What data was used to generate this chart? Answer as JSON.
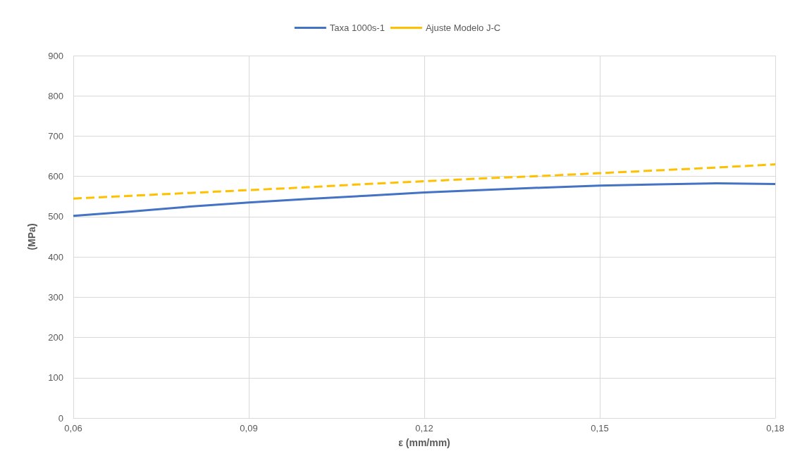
{
  "chart_data": {
    "type": "line",
    "xlabel": "ε (mm/mm)",
    "ylabel": "(MPa)",
    "xlim": [
      0.06,
      0.18
    ],
    "xticks": [
      {
        "value": 0.06,
        "label": "0,06"
      },
      {
        "value": 0.09,
        "label": "0,09"
      },
      {
        "value": 0.12,
        "label": "0,12"
      },
      {
        "value": 0.15,
        "label": "0,15"
      },
      {
        "value": 0.18,
        "label": "0,18"
      }
    ],
    "ylim": [
      0,
      900
    ],
    "yticks": [
      0,
      100,
      200,
      300,
      400,
      500,
      600,
      700,
      800,
      900
    ],
    "grid": true,
    "legend": "top",
    "marker": "none",
    "x": [
      0.06,
      0.07,
      0.08,
      0.09,
      0.1,
      0.11,
      0.12,
      0.13,
      0.14,
      0.15,
      0.16,
      0.17,
      0.18
    ],
    "series": [
      {
        "name": "Taxa 1000s-1",
        "color": "#4472c4",
        "line_style": "solid",
        "values": [
          502,
          513,
          525,
          535,
          544,
          552,
          560,
          566,
          572,
          577,
          580,
          583,
          581
        ]
      },
      {
        "name": "Ajuste Modelo J-C",
        "color": "#ffc000",
        "line_style": "dashed",
        "values": [
          545,
          552,
          559,
          566,
          573,
          581,
          588,
          595,
          601,
          608,
          615,
          622,
          630
        ]
      }
    ]
  }
}
